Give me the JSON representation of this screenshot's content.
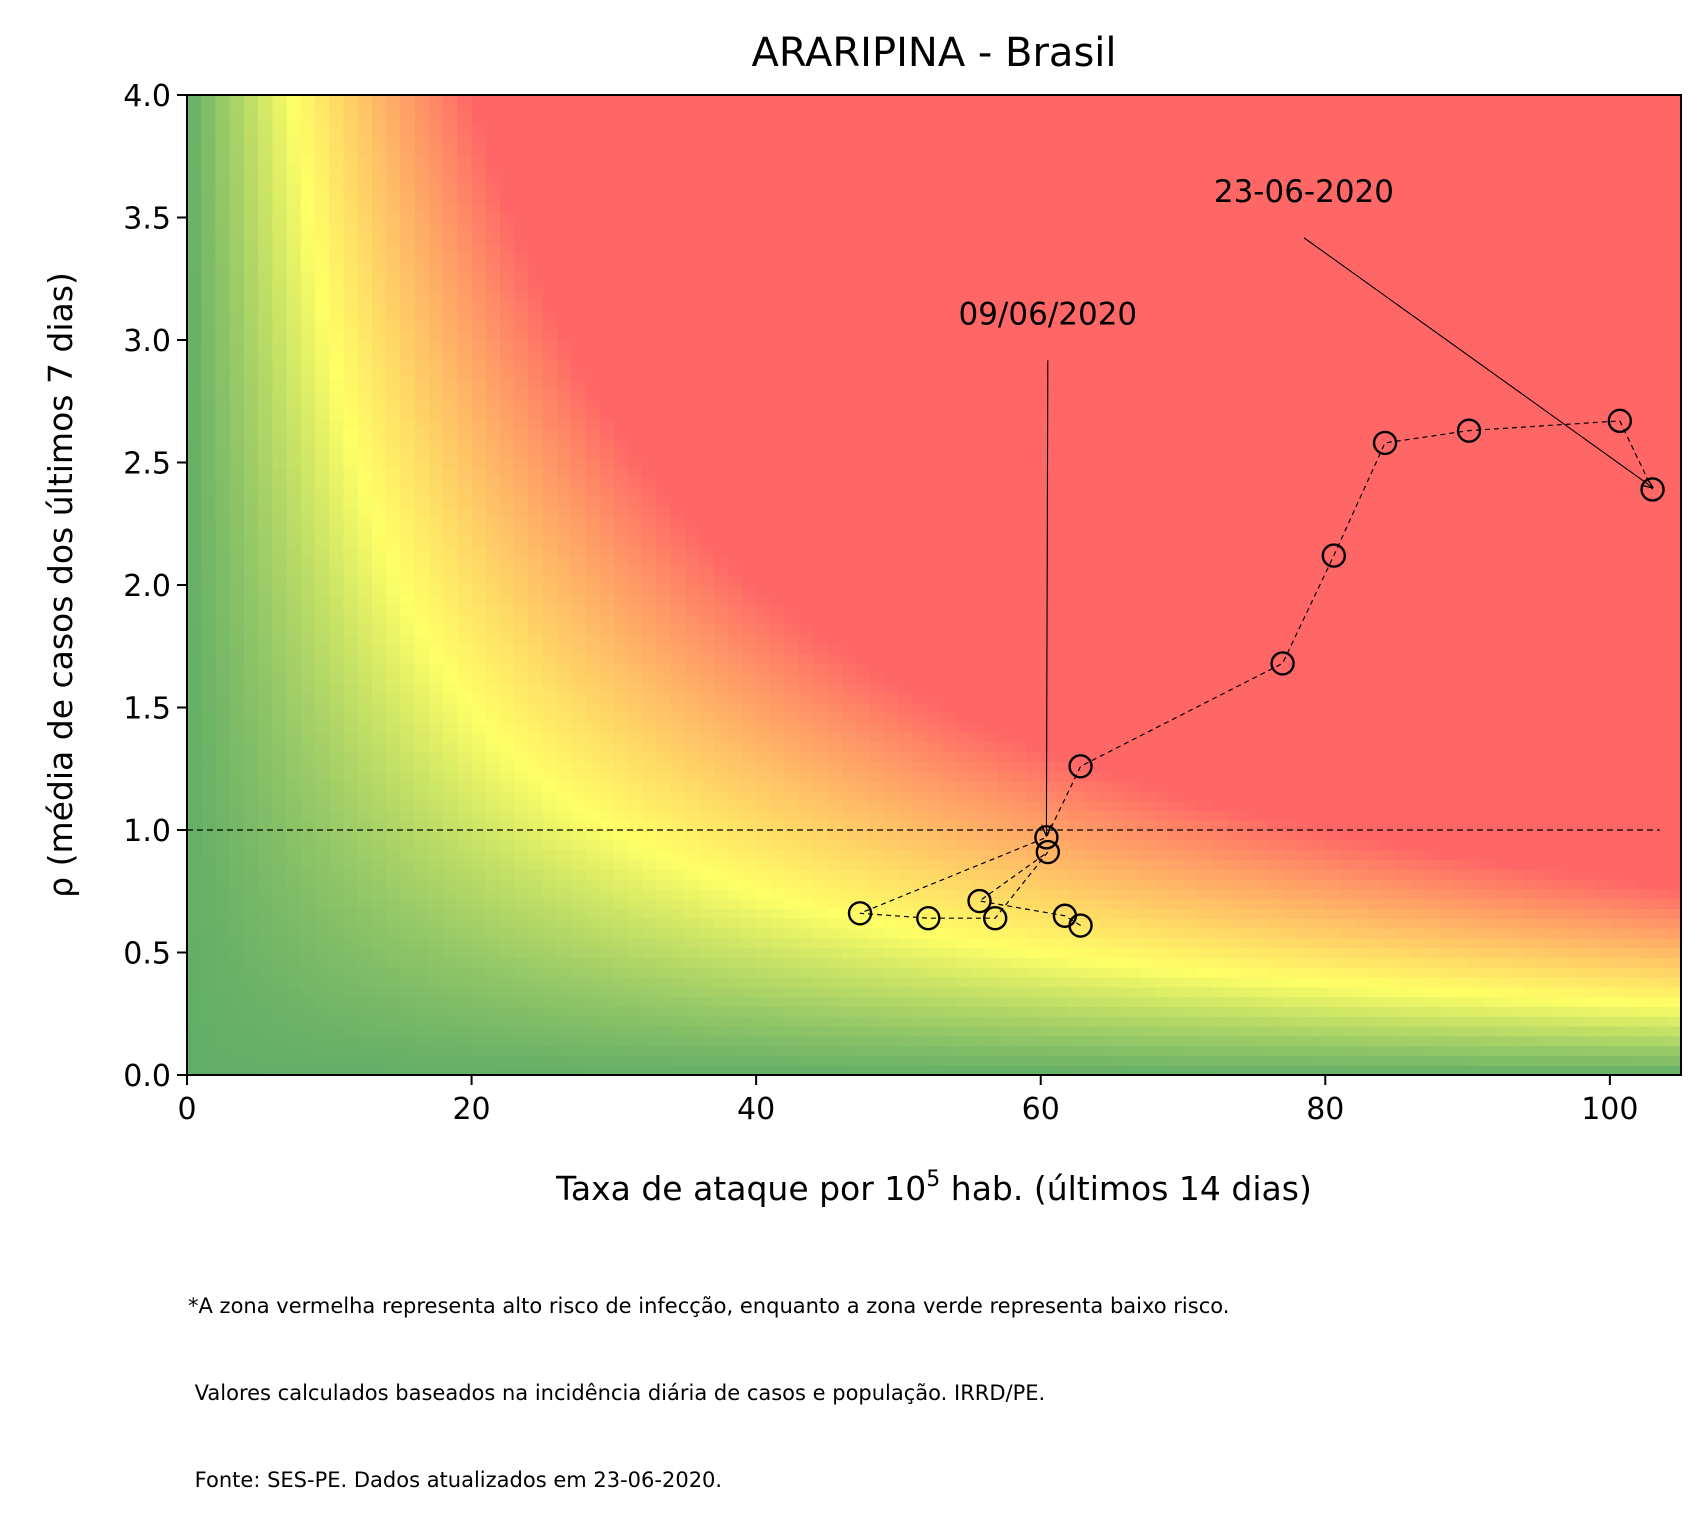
{
  "chart_data": {
    "type": "scatter",
    "title": "ARARIPINA - Brasil",
    "xlabel_prefix": "Taxa de ataque por 10",
    "xlabel_sup": "5",
    "xlabel_suffix": " hab. (últimos 14 dias)",
    "ylabel": "ρ (média de casos dos últimos 7 dias)",
    "xlim": [
      0,
      105
    ],
    "ylim": [
      0,
      4.0
    ],
    "xticks": [
      0,
      20,
      40,
      60,
      80,
      100
    ],
    "xtick_labels": [
      "0",
      "20",
      "40",
      "60",
      "80",
      "100"
    ],
    "yticks": [
      0,
      0.5,
      1.0,
      1.5,
      2.0,
      2.5,
      3.0,
      3.5,
      4.0
    ],
    "ytick_labels": [
      "0.0",
      "0.5",
      "1.0",
      "1.5",
      "2.0",
      "2.5",
      "3.0",
      "3.5",
      "4.0"
    ],
    "grid": false,
    "background": {
      "type": "risk-heatmap",
      "risk_metric": "x * y",
      "colors": {
        "low": "#63ae67",
        "mid": "#ffff66",
        "high": "#ff6666"
      },
      "description_hidden": true
    },
    "reference_line": {
      "y": 1.0,
      "style": "dashed"
    },
    "series": [
      {
        "marker": "open-circle",
        "line": "dashed",
        "color": "#000000",
        "x": [
          62.8,
          61.7,
          55.7,
          60.5,
          56.8,
          52.1,
          47.3,
          60.4,
          62.8,
          77.0,
          80.6,
          84.2,
          90.1,
          100.7,
          103.0
        ],
        "y": [
          0.61,
          0.65,
          0.71,
          0.91,
          0.64,
          0.64,
          0.66,
          0.97,
          1.26,
          1.68,
          2.12,
          2.58,
          2.63,
          2.67,
          2.39
        ]
      }
    ],
    "annotations": [
      {
        "text": "09/06/2020",
        "x": 60.4,
        "y": 0.97,
        "text_x": 60.5,
        "text_y": 2.95
      },
      {
        "text": "23-06-2020",
        "x": 103.0,
        "y": 2.39,
        "text_x": 78.5,
        "text_y": 3.45
      }
    ]
  },
  "footnote": {
    "line1": "*A zona vermelha representa alto risco de infecção, enquanto a zona verde representa baixo risco.",
    "line2": " Valores calculados baseados na incidência diária de casos e população. IRRD/PE.",
    "line3": " Fonte: SES-PE. Dados atualizados em 23-06-2020."
  }
}
